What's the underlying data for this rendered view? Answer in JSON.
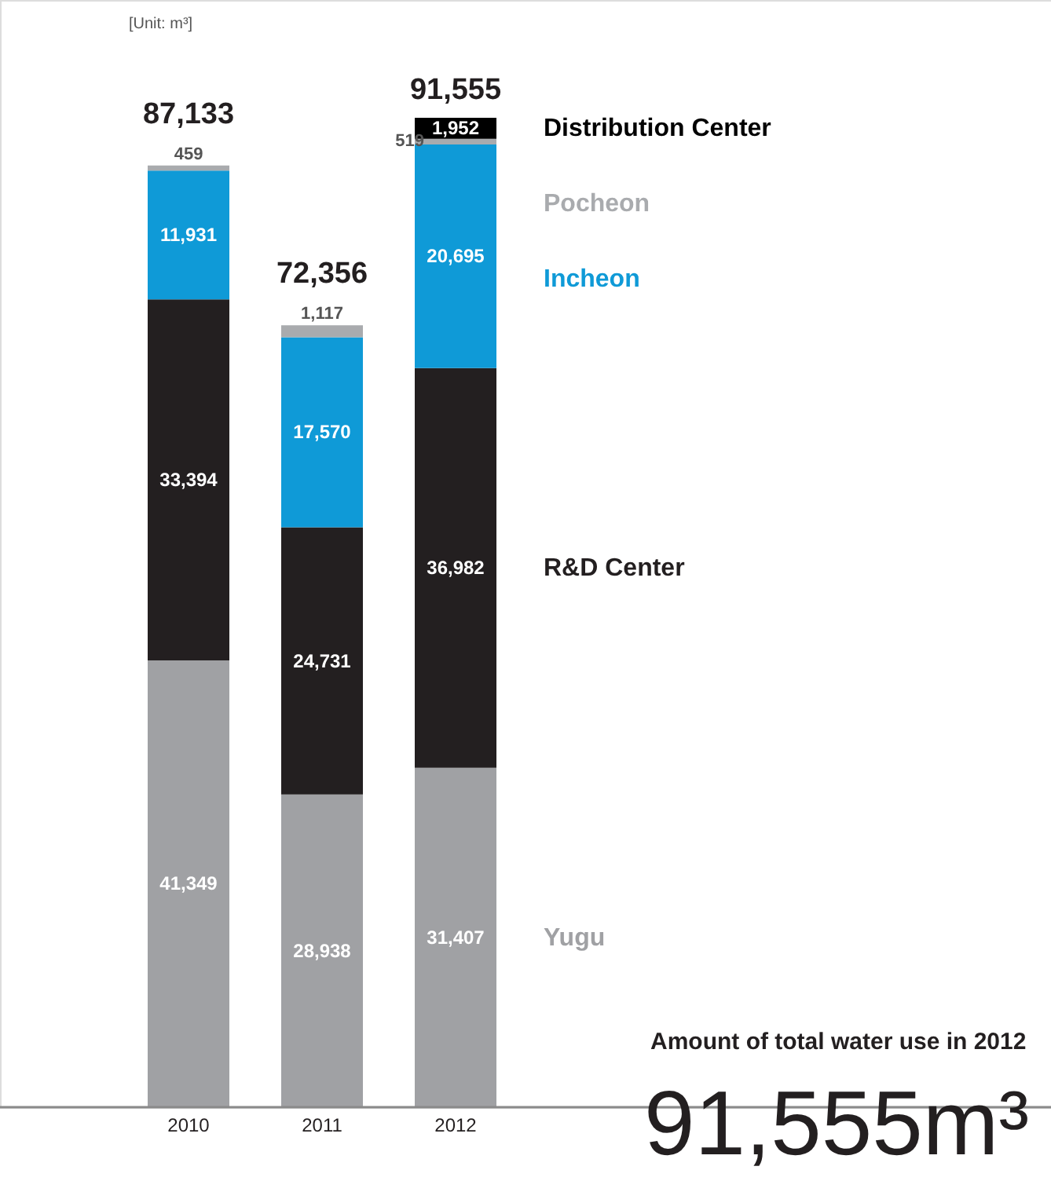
{
  "chart_data": {
    "type": "bar",
    "stacked": true,
    "tick_labels": "x",
    "categories": [
      "2010",
      "2011",
      "2012"
    ],
    "series": [
      {
        "name": "Yugu",
        "color": "#a0a1a4",
        "values": [
          41349,
          28938,
          31407
        ],
        "value_labels": [
          "41,349",
          "28,938",
          "31,407"
        ]
      },
      {
        "name": "R&D Center",
        "color": "#231f20",
        "values": [
          33394,
          24731,
          36982
        ],
        "value_labels": [
          "33,394",
          "24,731",
          "36,982"
        ]
      },
      {
        "name": "Incheon",
        "color": "#0f9ad7",
        "values": [
          11931,
          17570,
          20695
        ],
        "value_labels": [
          "11,931",
          "17,570",
          "20,695"
        ]
      },
      {
        "name": "Pocheon",
        "color": "#a9abae",
        "values": [
          459,
          1117,
          519
        ],
        "value_labels": [
          "459",
          "1,117",
          "519"
        ]
      },
      {
        "name": "Distribution Center",
        "color": "#000000",
        "values": [
          null,
          null,
          1952
        ],
        "value_labels": [
          null,
          null,
          "1,952"
        ]
      }
    ],
    "totals": [
      "87,133",
      "72,356",
      "91,555"
    ],
    "annotations": [
      "[Unit: m³]",
      "Amount of total water use in 2012",
      "91,555m³"
    ]
  }
}
